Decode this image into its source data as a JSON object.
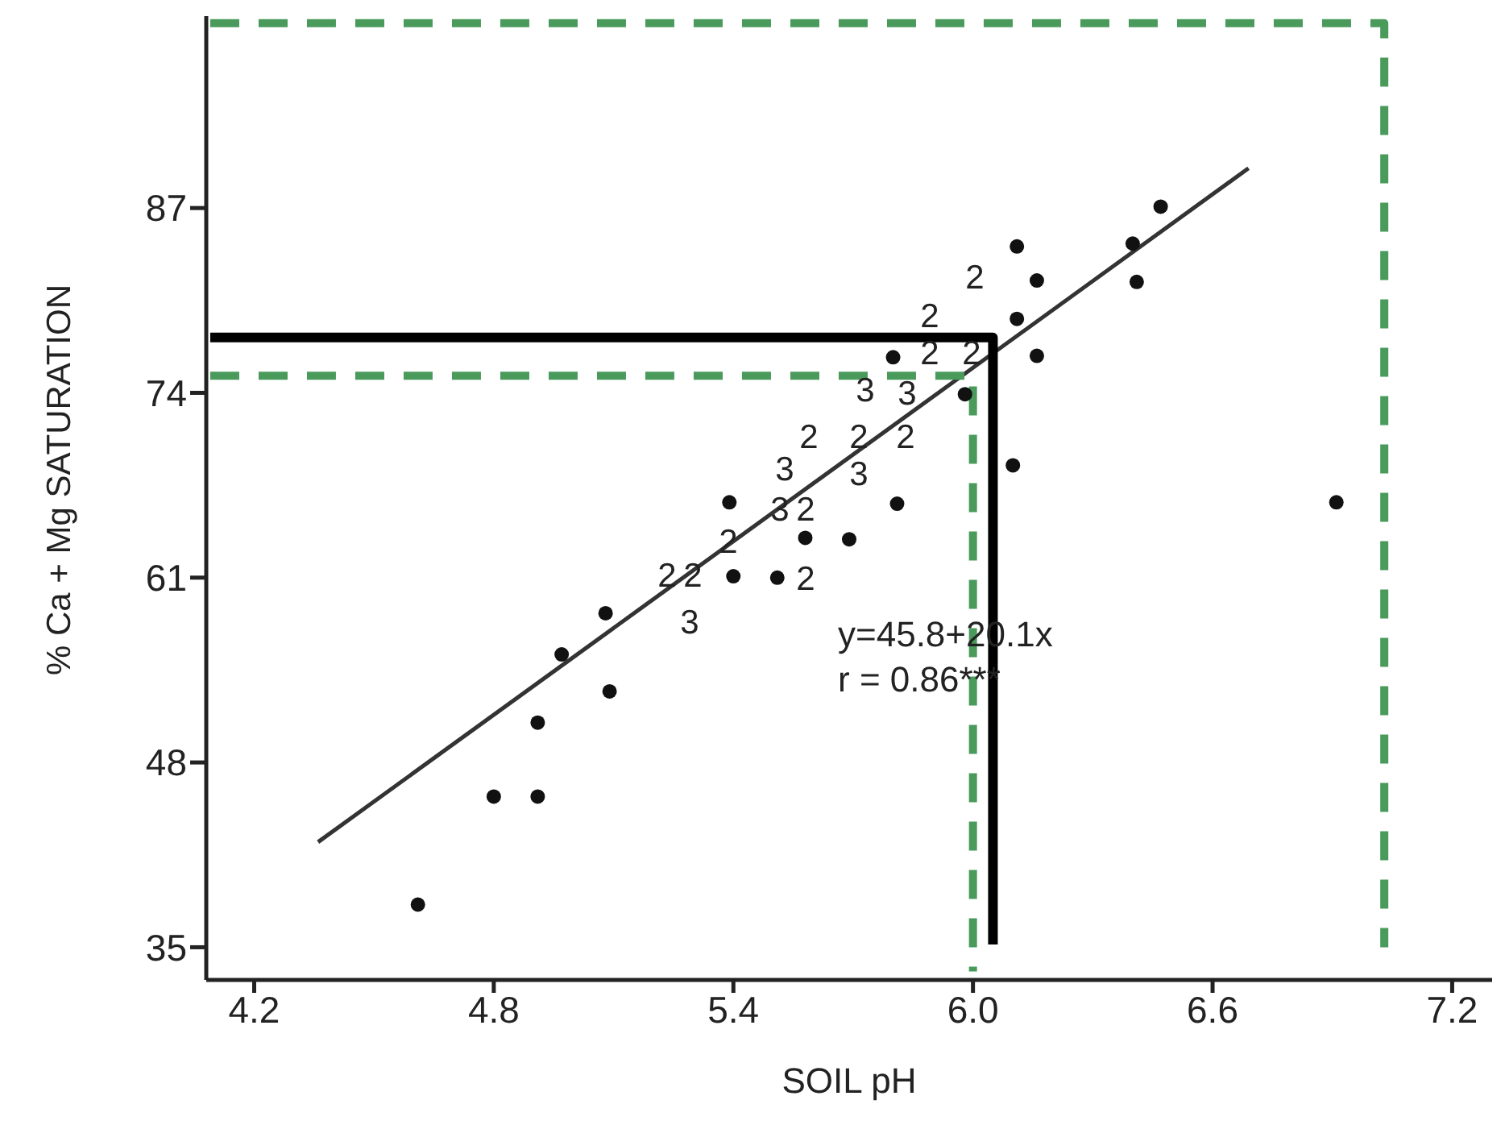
{
  "chart_data": {
    "type": "scatter",
    "xlabel": "SOIL pH",
    "ylabel": "% Ca + Mg SATURATION",
    "xlim": [
      4.08,
      7.3
    ],
    "ylim": [
      32.7,
      100.5
    ],
    "xticks": [
      4.2,
      4.8,
      5.4,
      {
        "value": 6,
        "label": "6.0"
      },
      6.6,
      7.2
    ],
    "yticks": [
      35,
      48,
      61,
      74,
      87
    ],
    "grid": false,
    "legend": false,
    "series": [
      {
        "color": "#111111",
        "marker": "circle",
        "x": [
          4.61,
          4.8,
          4.91,
          4.91,
          4.97,
          5.09,
          5.08,
          5.4,
          5.39,
          5.51,
          5.58,
          5.69,
          5.81,
          5.8,
          5.98,
          6.1,
          6.11,
          6.16,
          6.11,
          6.16,
          6.4,
          6.41,
          6.47,
          6.91
        ],
        "values": [
          38.0,
          45.6,
          45.6,
          50.8,
          55.6,
          53.0,
          58.5,
          61.1,
          66.3,
          61.0,
          63.8,
          63.7,
          66.2,
          76.5,
          73.9,
          68.9,
          84.3,
          81.9,
          79.2,
          76.6,
          84.5,
          81.8,
          87.1,
          66.3
        ]
      },
      {
        "type": "line",
        "color": "#333333",
        "marker": "none",
        "line_style": "solid",
        "x": [
          4.36,
          6.69
        ],
        "values": [
          42.4,
          89.8
        ]
      },
      {
        "type": "line",
        "color": "#000000",
        "marker": "none",
        "line_style": "solid",
        "x": [
          4.09,
          6.05,
          6.05
        ],
        "values": [
          77.9,
          77.9,
          35.2
        ]
      },
      {
        "type": "line",
        "color": "#4a9a5c",
        "marker": "none",
        "line_style": "dashed",
        "x": [
          4.09,
          6.0,
          6.0
        ],
        "values": [
          75.2,
          75.2,
          33.3
        ]
      },
      {
        "type": "line",
        "color": "#4a9a5c",
        "marker": "none",
        "line_style": "dashed",
        "x": [
          4.09,
          7.03,
          7.03
        ],
        "values": [
          100,
          100,
          35.0
        ]
      }
    ],
    "annotations": [
      "2",
      "2",
      "3",
      "2",
      "3",
      "3",
      "2",
      "2",
      "2",
      "3",
      "2",
      "2",
      "3",
      "3",
      "2",
      "2",
      "2",
      "2",
      "y=45.8+20.1x",
      "r = 0.86***"
    ]
  }
}
